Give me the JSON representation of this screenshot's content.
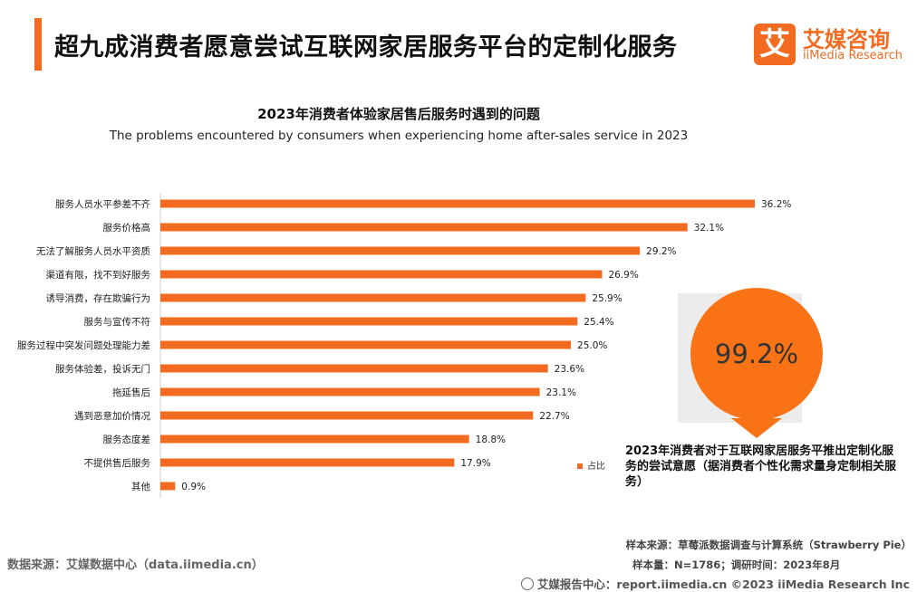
{
  "colors": {
    "accent": "#f26b21",
    "callout_circle": "#f97316",
    "gray_panel": "#ececec"
  },
  "header": {
    "title": "超九成消费者愿意尝试互联网家居服务平台的定制化服务"
  },
  "logo": {
    "mark": "艾",
    "cn": "艾媒咨询",
    "en": "iiMedia Research"
  },
  "chart_data": {
    "type": "bar",
    "orientation": "horizontal",
    "title": "2023年消费者体验家居售后服务时遇到的问题",
    "subtitle": "The problems encountered by consumers when experiencing home after-sales service in 2023",
    "categories": [
      "服务人员水平参差不齐",
      "服务价格高",
      "无法了解服务人员水平资质",
      "渠道有限，找不到好服务",
      "诱导消费，存在欺骗行为",
      "服务与宣传不符",
      "服务过程中突发问题处理能力差",
      "服务体验差，投诉无门",
      "拖延售后",
      "遇到恶意加价情况",
      "服务态度差",
      "不提供售后服务",
      "其他"
    ],
    "series": [
      {
        "name": "占比",
        "values": [
          36.2,
          32.1,
          29.2,
          26.9,
          25.9,
          25.4,
          25.0,
          23.6,
          23.1,
          22.7,
          18.8,
          17.9,
          0.9
        ],
        "labels": [
          "36.2%",
          "32.1%",
          "29.2%",
          "26.9%",
          "25.9%",
          "25.4%",
          "25.0%",
          "23.6%",
          "23.1%",
          "22.7%",
          "18.8%",
          "17.9%",
          "0.9%"
        ]
      }
    ],
    "xlim": [
      0,
      40
    ],
    "grid": false,
    "legend": "bottom-right"
  },
  "callout": {
    "value": "99.2%",
    "text": "2023年消费者对于互联网家居服务平推出定制化服务的尝试意愿（据消费者个性化需求量身定制相关服务）"
  },
  "notes": {
    "sample_source": "样本来源：草莓派数据调查与计算系统（Strawberry Pie）",
    "sample_size": "样本量：N=1786；调研时间：2023年8月"
  },
  "footer": {
    "data_source": "数据来源：艾媒数据中心（data.iimedia.cn）",
    "copyright": "艾媒报告中心：report.iimedia.cn  ©2023  iiMedia Research  Inc"
  }
}
